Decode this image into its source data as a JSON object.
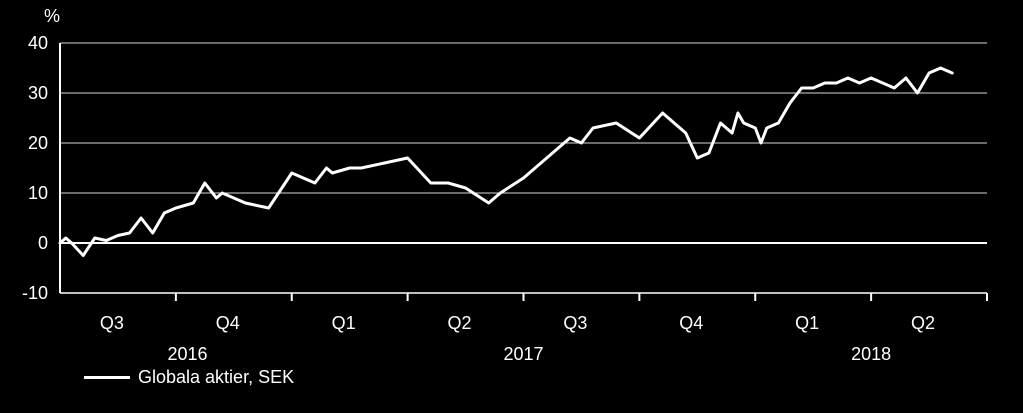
{
  "chart_data": {
    "type": "line",
    "unit_label": "%",
    "ylim": [
      -10,
      40
    ],
    "yticks": [
      -10,
      0,
      10,
      20,
      30,
      40
    ],
    "grid": true,
    "quarters": [
      "Q3",
      "Q4",
      "Q1",
      "Q2",
      "Q3",
      "Q4",
      "Q1",
      "Q2"
    ],
    "years": [
      "2016",
      "2017",
      "2018"
    ],
    "legend_position": "bottom-left",
    "series": [
      {
        "name": "Globala aktier, SEK",
        "color": "#ffffff",
        "x": [
          0.0,
          0.05,
          0.1,
          0.2,
          0.3,
          0.4,
          0.5,
          0.6,
          0.7,
          0.8,
          0.9,
          1.0,
          1.15,
          1.25,
          1.35,
          1.4,
          1.5,
          1.6,
          1.8,
          2.0,
          2.1,
          2.2,
          2.3,
          2.35,
          2.5,
          2.6,
          2.8,
          3.0,
          3.2,
          3.35,
          3.5,
          3.7,
          3.8,
          4.0,
          4.2,
          4.4,
          4.5,
          4.6,
          4.8,
          5.0,
          5.2,
          5.4,
          5.5,
          5.6,
          5.7,
          5.8,
          5.85,
          5.9,
          6.0,
          6.05,
          6.1,
          6.2,
          6.25,
          6.3,
          6.4,
          6.5,
          6.6,
          6.7,
          6.8,
          6.9,
          7.0,
          7.2,
          7.3,
          7.4,
          7.5,
          7.6,
          7.7
        ],
        "values": [
          0,
          1,
          0,
          -2.5,
          1,
          0.5,
          1.5,
          2,
          5,
          2,
          6,
          7,
          8,
          12,
          9,
          10,
          9,
          8,
          7,
          14,
          13,
          12,
          15,
          14,
          15,
          15,
          16,
          17,
          12,
          12,
          11,
          8,
          10,
          13,
          17,
          21,
          20,
          23,
          24,
          21,
          26,
          22,
          17,
          18,
          24,
          22,
          26,
          24,
          23,
          20,
          23,
          24,
          26,
          28,
          31,
          31,
          32,
          32,
          33,
          32,
          33,
          31,
          33,
          30,
          34,
          35,
          34
        ]
      }
    ]
  }
}
